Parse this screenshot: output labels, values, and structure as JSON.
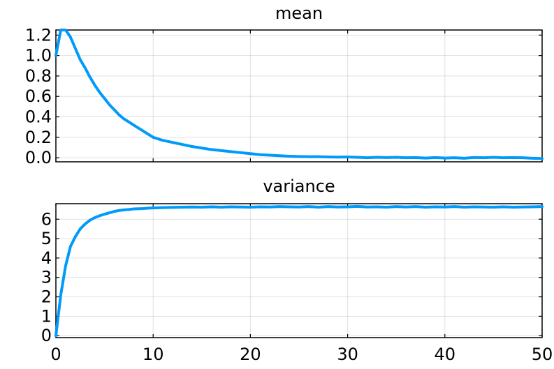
{
  "chart_data": [
    {
      "type": "line",
      "title": "mean",
      "xlim": [
        0,
        50
      ],
      "ylim": [
        -0.04,
        1.25
      ],
      "grid": true,
      "xticks": [
        0,
        10,
        20,
        30,
        40,
        50
      ],
      "xtick_labels_visible": false,
      "yticks": [
        0.0,
        0.2,
        0.4,
        0.6,
        0.8,
        1.0,
        1.2
      ],
      "ytick_labels": [
        "0.0",
        "0.2",
        "0.4",
        "0.6",
        "0.8",
        "1.0",
        "1.2"
      ],
      "color": "#009AFA",
      "series": [
        {
          "x": [
            0,
            0.5,
            1,
            1.5,
            2,
            2.5,
            3,
            3.5,
            4,
            4.5,
            5,
            5.5,
            6,
            6.5,
            7,
            7.5,
            8,
            8.5,
            9,
            9.5,
            10,
            11,
            12,
            13,
            14,
            15,
            16,
            17,
            18,
            19,
            20,
            21,
            22,
            23,
            24,
            25,
            26,
            27,
            28,
            29,
            30,
            31,
            32,
            33,
            34,
            35,
            36,
            37,
            38,
            39,
            40,
            41,
            42,
            43,
            44,
            45,
            46,
            47,
            48,
            49,
            50
          ],
          "values": [
            1.0,
            1.25,
            1.25,
            1.18,
            1.07,
            0.96,
            0.88,
            0.79,
            0.71,
            0.64,
            0.58,
            0.52,
            0.47,
            0.42,
            0.38,
            0.35,
            0.32,
            0.29,
            0.26,
            0.23,
            0.2,
            0.17,
            0.15,
            0.13,
            0.11,
            0.095,
            0.08,
            0.07,
            0.06,
            0.05,
            0.04,
            0.03,
            0.025,
            0.02,
            0.015,
            0.012,
            0.01,
            0.01,
            0.008,
            0.006,
            0.008,
            0.004,
            0.0,
            0.004,
            0.002,
            0.004,
            0.0,
            0.002,
            -0.003,
            0.002,
            -0.003,
            0.0,
            -0.005,
            0.003,
            0.0,
            0.004,
            0.0,
            0.002,
            0.0,
            -0.005,
            -0.008
          ]
        }
      ]
    },
    {
      "type": "line",
      "title": "variance",
      "xlim": [
        0,
        50
      ],
      "ylim": [
        -0.1,
        6.8
      ],
      "grid": true,
      "xticks": [
        0,
        10,
        20,
        30,
        40,
        50
      ],
      "xtick_labels": [
        "0",
        "10",
        "20",
        "30",
        "40",
        "50"
      ],
      "yticks": [
        0,
        1,
        2,
        3,
        4,
        5,
        6
      ],
      "ytick_labels": [
        "0",
        "1",
        "2",
        "3",
        "4",
        "5",
        "6"
      ],
      "color": "#009AFA",
      "series": [
        {
          "x": [
            0,
            0.5,
            1,
            1.5,
            2,
            2.5,
            3,
            3.5,
            4,
            4.5,
            5,
            5.5,
            6,
            6.5,
            7,
            7.5,
            8,
            8.5,
            9,
            9.5,
            10,
            11,
            12,
            13,
            14,
            15,
            16,
            17,
            18,
            19,
            20,
            21,
            22,
            23,
            24,
            25,
            26,
            27,
            28,
            29,
            30,
            31,
            32,
            33,
            34,
            35,
            36,
            37,
            38,
            39,
            40,
            41,
            42,
            43,
            44,
            45,
            46,
            47,
            48,
            49,
            50
          ],
          "values": [
            0.0,
            2.1,
            3.6,
            4.6,
            5.1,
            5.5,
            5.75,
            5.95,
            6.08,
            6.18,
            6.26,
            6.33,
            6.4,
            6.45,
            6.48,
            6.5,
            6.53,
            6.54,
            6.55,
            6.57,
            6.58,
            6.6,
            6.61,
            6.62,
            6.63,
            6.62,
            6.64,
            6.62,
            6.64,
            6.63,
            6.62,
            6.64,
            6.63,
            6.65,
            6.64,
            6.63,
            6.65,
            6.62,
            6.65,
            6.63,
            6.64,
            6.66,
            6.63,
            6.64,
            6.62,
            6.65,
            6.63,
            6.65,
            6.62,
            6.64,
            6.63,
            6.65,
            6.62,
            6.64,
            6.63,
            6.62,
            6.64,
            6.62,
            6.63,
            6.64,
            6.65
          ]
        }
      ]
    }
  ]
}
